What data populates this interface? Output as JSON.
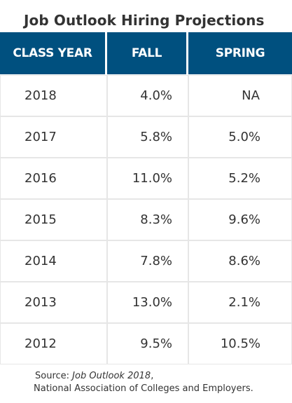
{
  "title": "Job Outlook Hiring Projections",
  "colors": {
    "header_bg": "#00507f",
    "header_text": "#ffffff",
    "border": "#e6e6e6"
  },
  "chart_data": {
    "type": "table",
    "title": "Job Outlook Hiring Projections",
    "columns": [
      "CLASS YEAR",
      "FALL",
      "SPRING"
    ],
    "rows": [
      [
        "2018",
        "4.0%",
        "NA"
      ],
      [
        "2017",
        "5.8%",
        "5.0%"
      ],
      [
        "2016",
        "11.0%",
        "5.2%"
      ],
      [
        "2015",
        "8.3%",
        "9.6%"
      ],
      [
        "2014",
        "7.8%",
        "8.6%"
      ],
      [
        "2013",
        "13.0%",
        "2.1%"
      ],
      [
        "2012",
        "9.5%",
        "10.5%"
      ]
    ]
  },
  "source": {
    "prefix": "Source: ",
    "publication": "Job Outlook 2018",
    "suffix": ",",
    "line2": "National Association of Colleges and Employers."
  }
}
